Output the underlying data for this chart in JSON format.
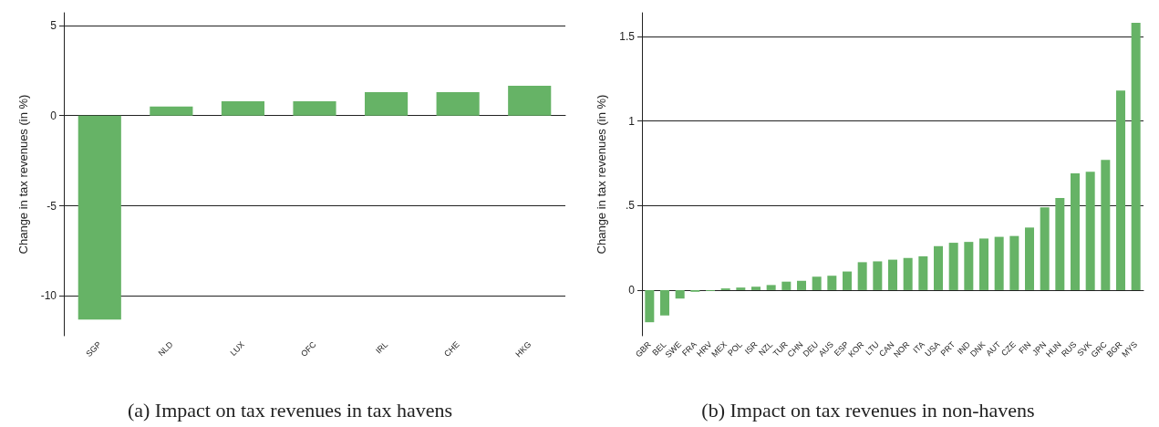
{
  "chart_data": [
    {
      "type": "bar",
      "ylabel": "Change in tax revenues (in %)",
      "categories": [
        "SGP",
        "NLD",
        "LUX",
        "OFC",
        "IRL",
        "CHE",
        "HKG"
      ],
      "values": [
        -11.3,
        0.5,
        0.8,
        0.8,
        1.3,
        1.3,
        1.65
      ],
      "color": "#66b366",
      "ylim": [
        -12.2,
        5.7
      ],
      "yticks": [
        -10,
        -5,
        0,
        5
      ],
      "grid": "y",
      "annotations": [
        "(a) Impact on tax revenues in tax havens"
      ]
    },
    {
      "type": "bar",
      "ylabel": "Change in tax revenues (in %)",
      "categories": [
        "GBR",
        "BEL",
        "SWE",
        "FRA",
        "HRV",
        "MEX",
        "POL",
        "ISR",
        "NZL",
        "TUR",
        "CHN",
        "DEU",
        "AUS",
        "ESP",
        "KOR",
        "LTU",
        "CAN",
        "NOR",
        "ITA",
        "USA",
        "PRT",
        "IND",
        "DNK",
        "AUT",
        "CZE",
        "FIN",
        "JPN",
        "HUN",
        "RUS",
        "SVK",
        "GRC",
        "BGR",
        "MYS"
      ],
      "values": [
        -0.19,
        -0.15,
        -0.05,
        -0.01,
        -0.005,
        0.01,
        0.015,
        0.02,
        0.03,
        0.05,
        0.055,
        0.08,
        0.085,
        0.11,
        0.165,
        0.17,
        0.18,
        0.19,
        0.2,
        0.26,
        0.28,
        0.285,
        0.305,
        0.315,
        0.32,
        0.37,
        0.49,
        0.545,
        0.69,
        0.7,
        0.77,
        1.18,
        1.58
      ],
      "color": "#66b366",
      "ylim": [
        -0.27,
        1.64
      ],
      "yticks": [
        0,
        {
          "value": 0.5,
          "label": ".5"
        },
        1,
        1.5
      ],
      "grid": "y",
      "annotations": [
        "(b) Impact on tax revenues in non-havens"
      ]
    }
  ]
}
